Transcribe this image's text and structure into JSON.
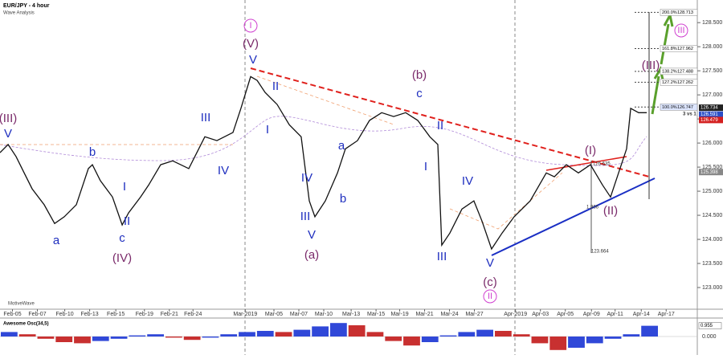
{
  "chart_data": {
    "type": "line",
    "title": "EUR/JPY - 4 hour",
    "subtitle": "Wave Analysis",
    "watermark": "MotiveWave",
    "color": "#111111",
    "x": [
      0,
      0.65,
      1.29,
      1.94,
      2.58,
      3.55,
      4.39,
      5.16,
      6.13,
      7.1,
      7.42,
      8.06,
      9.03,
      9.81,
      10.32,
      11.29,
      11.94,
      12.9,
      13.87,
      15.16,
      16.45,
      17.42,
      18.71,
      19.35,
      20.13,
      20.65,
      21.29,
      22.26,
      23.23,
      24.19,
      24.84,
      25.29,
      26.13,
      27.1,
      27.74,
      28.71,
      29.68,
      30.65,
      31.61,
      32.58,
      33.55,
      34.52,
      35.16,
      35.48,
      36.13,
      37.1,
      38.06,
      38.71,
      39.48,
      40.32,
      41.29,
      42.58,
      43.87,
      44.52,
      45.48,
      46.45,
      47.42,
      48.39,
      49.03,
      49.68,
      50.32,
      50.65,
      51.29,
      51.94
    ],
    "values": [
      125.8,
      125.97,
      125.72,
      125.38,
      125.05,
      124.72,
      124.33,
      124.47,
      124.72,
      125.47,
      125.55,
      125.22,
      124.88,
      124.3,
      124.55,
      124.88,
      125.13,
      125.55,
      125.63,
      125.47,
      126.13,
      126.05,
      126.22,
      126.72,
      127.38,
      127.3,
      127.05,
      126.8,
      126.38,
      126.13,
      124.8,
      124.47,
      124.8,
      125.38,
      125.88,
      126.05,
      126.47,
      126.63,
      126.55,
      126.63,
      126.47,
      126.13,
      125.97,
      123.88,
      124.13,
      124.63,
      124.8,
      124.38,
      123.8,
      124.13,
      124.47,
      124.8,
      125.38,
      125.3,
      125.55,
      125.38,
      125.55,
      125.13,
      124.88,
      125.38,
      125.88,
      126.72,
      126.63,
      126.63
    ],
    "xlim": [
      0,
      56
    ],
    "xticks": [
      {
        "value": 1,
        "label": "Feb-05"
      },
      {
        "value": 3,
        "label": "Feb-07"
      },
      {
        "value": 5.2,
        "label": "Feb-10"
      },
      {
        "value": 7.2,
        "label": "Feb-13"
      },
      {
        "value": 9.3,
        "label": "Feb-15"
      },
      {
        "value": 11.6,
        "label": "Feb-19"
      },
      {
        "value": 13.6,
        "label": "Feb-21"
      },
      {
        "value": 15.5,
        "label": "Feb-24"
      },
      {
        "value": 19.7,
        "label": "Mar-2019"
      },
      {
        "value": 22,
        "label": "Mar-05"
      },
      {
        "value": 24,
        "label": "Mar-07"
      },
      {
        "value": 26,
        "label": "Mar-10"
      },
      {
        "value": 28.2,
        "label": "Mar-13"
      },
      {
        "value": 30.2,
        "label": "Mar-15"
      },
      {
        "value": 32.1,
        "label": "Mar-19"
      },
      {
        "value": 34.1,
        "label": "Mar-21"
      },
      {
        "value": 36.1,
        "label": "Mar-24"
      },
      {
        "value": 38.1,
        "label": "Mar-27"
      },
      {
        "value": 41.4,
        "label": "Apr-2019"
      },
      {
        "value": 43.4,
        "label": "Apr-03"
      },
      {
        "value": 45.4,
        "label": "Apr-05"
      },
      {
        "value": 47.5,
        "label": "Apr-09"
      },
      {
        "value": 49.4,
        "label": "Apr-11"
      },
      {
        "value": 51.5,
        "label": "Apr-14"
      },
      {
        "value": 53.5,
        "label": "Apr-17"
      }
    ],
    "ylim": [
      122.55,
      128.97
    ],
    "yticks": [
      {
        "value": 123,
        "label": "123.000"
      },
      {
        "value": 123.5,
        "label": "123.500"
      },
      {
        "value": 124,
        "label": "124.000"
      },
      {
        "value": 124.5,
        "label": "124.500"
      },
      {
        "value": 125,
        "label": "125.000"
      },
      {
        "value": 125.5,
        "label": "125.500"
      },
      {
        "value": 126,
        "label": "126.000"
      },
      {
        "value": 126.5,
        "label": "126.500"
      },
      {
        "value": 127,
        "label": "127.000"
      },
      {
        "value": 127.5,
        "label": "127.500"
      },
      {
        "value": 128,
        "label": "128.000"
      },
      {
        "value": 128.5,
        "label": "128.500"
      }
    ],
    "fib_levels": [
      {
        "label": "200.0%",
        "value": 128.713
      },
      {
        "label": "161.8%",
        "value": 127.962
      },
      {
        "label": "138.2%",
        "value": 127.488
      },
      {
        "label": "127.2%",
        "value": 127.262
      },
      {
        "label": "100.0%",
        "value": 126.747
      }
    ],
    "price_tags": [
      {
        "value": 126.734,
        "color": "#222222"
      },
      {
        "value": 126.591,
        "color": "#2b4fc7"
      },
      {
        "value": 126.479,
        "color": "#d42020"
      },
      {
        "value": 125.398,
        "color": "#888888"
      }
    ],
    "annotations": [
      "3 vs 1",
      "1.966",
      "123.664",
      "126.635"
    ],
    "wave_labels": [
      "I",
      "(V)",
      "V",
      "(III)",
      "V",
      "b",
      "a",
      "I",
      "II",
      "c",
      "(IV)",
      "III",
      "IV",
      "II",
      "I",
      "IV",
      "III",
      "V",
      "(a)",
      "a",
      "b",
      "(b)",
      "c",
      "II",
      "I",
      "III",
      "IV",
      "V",
      "(c)",
      "II",
      "(I)",
      "(II)",
      "(III)",
      "III"
    ],
    "oscillator": {
      "title": "Awesome Osc(34,5)",
      "values": [
        0.4,
        0.2,
        -0.2,
        -0.5,
        -0.6,
        -0.4,
        -0.2,
        0.1,
        0.2,
        -0.1,
        -0.3,
        -0.1,
        0.2,
        0.4,
        0.5,
        0.4,
        0.6,
        0.9,
        1.2,
        1.0,
        0.4,
        -0.4,
        -0.8,
        -0.5,
        0.1,
        0.4,
        0.6,
        0.5,
        0.2,
        -0.6,
        -1.2,
        -1.0,
        -0.6,
        -0.2,
        0.2,
        0.955
      ],
      "ylim": [
        -1.5,
        1.5
      ],
      "yticks": [
        {
          "value": 0,
          "label": "0.000"
        }
      ],
      "current": 0.955
    }
  }
}
